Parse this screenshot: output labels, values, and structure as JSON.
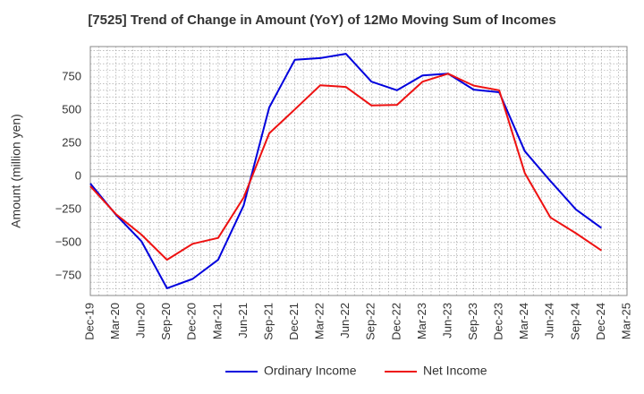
{
  "chart_data": {
    "type": "line",
    "title": "[7525]  Trend of Change in Amount (YoY) of 12Mo Moving Sum of Incomes",
    "ylabel": "Amount (million yen)",
    "xlabel": "",
    "ylim": [
      -900,
      980
    ],
    "yticks": [
      -750,
      -500,
      -250,
      0,
      250,
      500,
      750
    ],
    "ytick_labels": [
      "−750",
      "−500",
      "−250",
      "0",
      "250",
      "500",
      "750"
    ],
    "categories": [
      "Dec-19",
      "Mar-20",
      "Jun-20",
      "Sep-20",
      "Dec-20",
      "Mar-21",
      "Jun-21",
      "Sep-21",
      "Dec-21",
      "Mar-22",
      "Jun-22",
      "Sep-22",
      "Dec-22",
      "Mar-23",
      "Jun-23",
      "Sep-23",
      "Dec-23",
      "Mar-24",
      "Jun-24",
      "Sep-24",
      "Dec-24",
      "Mar-25"
    ],
    "grid": true,
    "legend_position": "bottom",
    "series": [
      {
        "name": "Ordinary Income",
        "color": "#0000dd",
        "values": [
          -55,
          -290,
          -490,
          -845,
          -775,
          -630,
          -220,
          520,
          880,
          893,
          925,
          715,
          650,
          762,
          775,
          655,
          635,
          190,
          -35,
          -250,
          -390,
          null
        ]
      },
      {
        "name": "Net Income",
        "color": "#ee1111",
        "values": [
          -75,
          -285,
          -440,
          -630,
          -510,
          -465,
          -160,
          325,
          505,
          688,
          675,
          535,
          540,
          715,
          775,
          685,
          650,
          25,
          -310,
          -430,
          -560,
          null
        ]
      }
    ]
  }
}
